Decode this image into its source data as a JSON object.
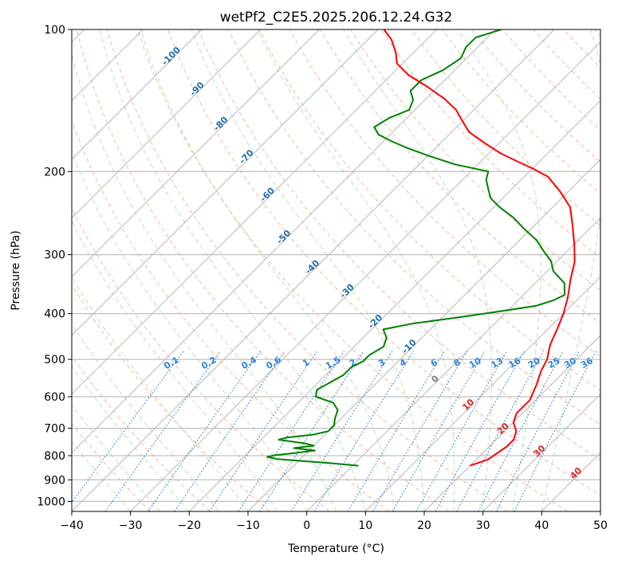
{
  "chart_data": {
    "type": "line",
    "subtype": "skew-t log-p diagram",
    "title": "wetPf2_C2E5.2025.206.12.24.G32",
    "xlabel": "Temperature (°C)",
    "ylabel": "Pressure (hPa)",
    "xlim": [
      -40,
      50
    ],
    "ylim": [
      1050,
      100
    ],
    "y_scale": "log",
    "grid": true,
    "x_ticks": [
      "−40",
      "−30",
      "−20",
      "−10",
      "0",
      "10",
      "20",
      "30",
      "40",
      "50"
    ],
    "y_ticks": [
      "100",
      "200",
      "300",
      "400",
      "500",
      "600",
      "700",
      "800",
      "900",
      "1000"
    ],
    "isotherm_labels": [
      "-100",
      "-90",
      "-80",
      "-70",
      "-60",
      "-50",
      "-40",
      "-30",
      "-20",
      "-10",
      "0",
      "10",
      "20",
      "30",
      "40"
    ],
    "mixing_ratio_labels": [
      "0.1",
      "0.2",
      "0.4",
      "0.6",
      "1",
      "1.5",
      "2",
      "3",
      "4",
      "6",
      "8",
      "10",
      "13",
      "16",
      "20",
      "25",
      "30",
      "36"
    ],
    "series": [
      {
        "color": "#ff0000",
        "points": [
          [
            20.0,
            840
          ],
          [
            22.0,
            815
          ],
          [
            22.5,
            790
          ],
          [
            23.0,
            765
          ],
          [
            23.0,
            740
          ],
          [
            22.0,
            710
          ],
          [
            20.0,
            680
          ],
          [
            19.0,
            650
          ],
          [
            19.0,
            610
          ],
          [
            17.5,
            565
          ],
          [
            16.0,
            530
          ],
          [
            15.0,
            500
          ],
          [
            13.0,
            465
          ],
          [
            11.5,
            430
          ],
          [
            10.0,
            400
          ],
          [
            8.0,
            370
          ],
          [
            5.5,
            340
          ],
          [
            3.0,
            310
          ],
          [
            0.0,
            285
          ],
          [
            -3.5,
            260
          ],
          [
            -7.0,
            238
          ],
          [
            -11.5,
            220
          ],
          [
            -16.0,
            205
          ],
          [
            -20.0,
            197
          ],
          [
            -24.0,
            190
          ],
          [
            -28.0,
            183
          ],
          [
            -32.0,
            175
          ],
          [
            -37.0,
            165
          ],
          [
            -40.5,
            155
          ],
          [
            -43.0,
            148
          ],
          [
            -47.0,
            140
          ],
          [
            -52.0,
            132
          ],
          [
            -57.0,
            125
          ],
          [
            -61.0,
            118
          ],
          [
            -63.0,
            112
          ],
          [
            -66.0,
            105
          ],
          [
            -69.0,
            100
          ]
        ]
      },
      {
        "color": "#008000",
        "points": [
          [
            1.0,
            840
          ],
          [
            -4.0,
            830
          ],
          [
            -10.0,
            820
          ],
          [
            -14.0,
            813
          ],
          [
            -16.0,
            805
          ],
          [
            -15.0,
            798
          ],
          [
            -12.0,
            790
          ],
          [
            -9.0,
            780
          ],
          [
            -13.0,
            771
          ],
          [
            -10.0,
            762
          ],
          [
            -12.0,
            753
          ],
          [
            -17.0,
            740
          ],
          [
            -16.0,
            732
          ],
          [
            -12.0,
            722
          ],
          [
            -10.0,
            710
          ],
          [
            -10.0,
            690
          ],
          [
            -11.0,
            668
          ],
          [
            -12.0,
            640
          ],
          [
            -14.0,
            618
          ],
          [
            -18.0,
            600
          ],
          [
            -19.0,
            580
          ],
          [
            -18.0,
            560
          ],
          [
            -17.0,
            540
          ],
          [
            -17.0,
            520
          ],
          [
            -16.0,
            505
          ],
          [
            -16.0,
            490
          ],
          [
            -15.0,
            470
          ],
          [
            -16.0,
            450
          ],
          [
            -18.0,
            432
          ],
          [
            -14.0,
            420
          ],
          [
            -6.0,
            405
          ],
          [
            -1.0,
            395
          ],
          [
            4.0,
            385
          ],
          [
            6.0,
            375
          ],
          [
            7.0,
            365
          ],
          [
            5.0,
            345
          ],
          [
            1.0,
            325
          ],
          [
            -1.0,
            310
          ],
          [
            -4.0,
            295
          ],
          [
            -7.0,
            280
          ],
          [
            -11.0,
            265
          ],
          [
            -15.0,
            250
          ],
          [
            -19.0,
            238
          ],
          [
            -22.0,
            228
          ],
          [
            -24.0,
            218
          ],
          [
            -26.0,
            208
          ],
          [
            -27.0,
            200
          ],
          [
            -34.0,
            193
          ],
          [
            -40.0,
            185
          ],
          [
            -45.0,
            178
          ],
          [
            -49.0,
            172
          ],
          [
            -52.0,
            167
          ],
          [
            -54.0,
            161
          ],
          [
            -53.0,
            154
          ],
          [
            -51.0,
            148
          ],
          [
            -52.0,
            141
          ],
          [
            -54.0,
            135
          ],
          [
            -54.0,
            128
          ],
          [
            -52.0,
            122
          ],
          [
            -51.0,
            115
          ],
          [
            -52.0,
            109
          ],
          [
            -52.0,
            104
          ],
          [
            -49.0,
            100
          ]
        ]
      }
    ]
  }
}
